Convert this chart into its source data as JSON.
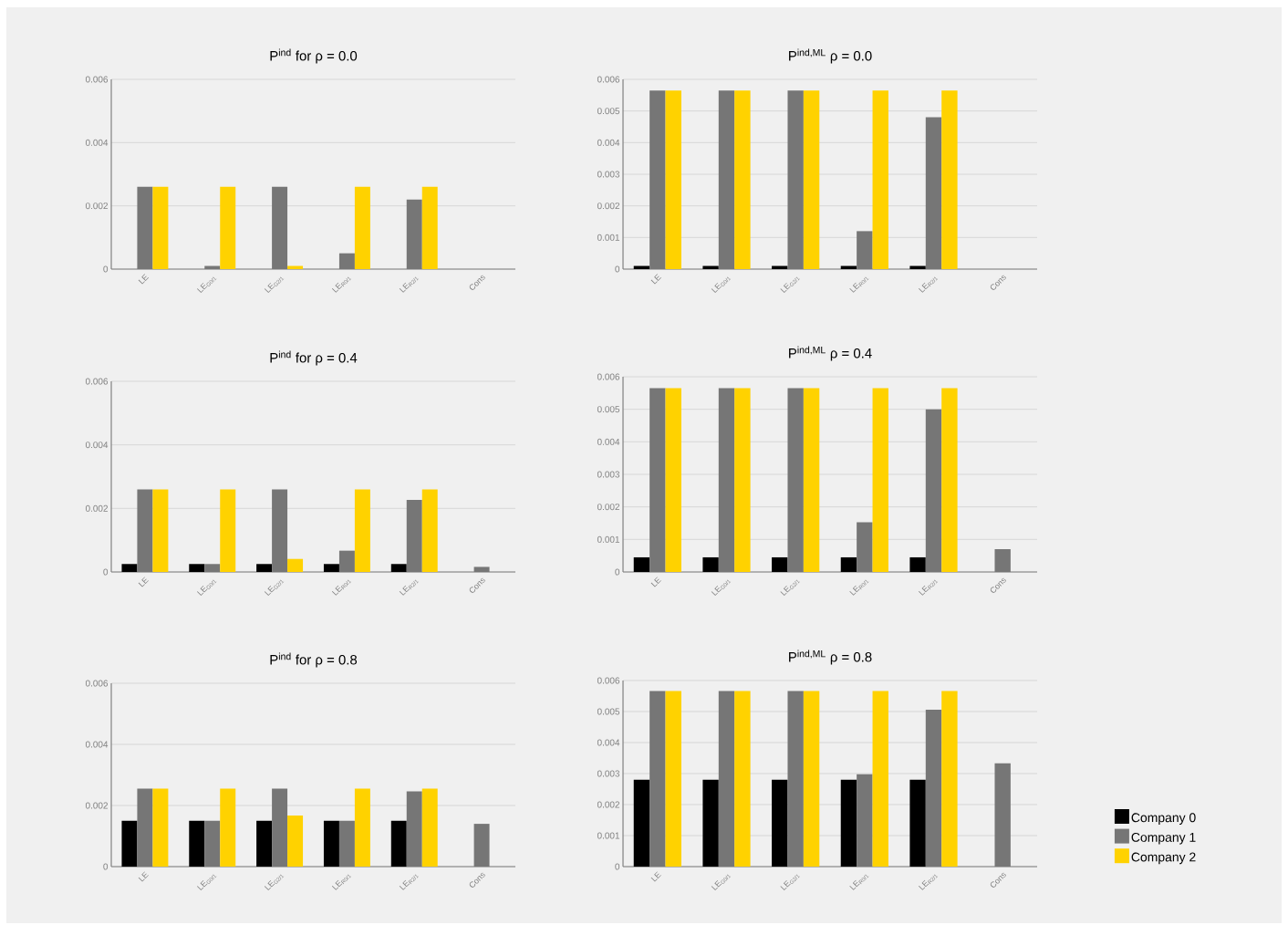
{
  "chart_data": [
    {
      "type": "bar",
      "title": "P$^{ind}$ for ρ = 0.0",
      "categories": [
        "LE",
        "LE$_{G0/1}$",
        "LE$_{G2/1}$",
        "LE$_{R0/1}$",
        "LE$_{R2/1}$",
        "Cons"
      ],
      "ylim": [
        0,
        0.006
      ],
      "yticks": [
        0,
        0.002,
        0.004,
        0.006
      ],
      "grid": "y",
      "series": [
        {
          "color": "#000000",
          "values": [
            0,
            0,
            0,
            0,
            0,
            0
          ]
        },
        {
          "color": "#767676",
          "values": [
            0.0026,
            0.0001,
            0.0026,
            0.0005,
            0.0022,
            0
          ]
        },
        {
          "color": "#ffd200",
          "values": [
            0.0026,
            0.0026,
            0.0001,
            0.0026,
            0.0026,
            0
          ]
        }
      ]
    },
    {
      "type": "bar",
      "title": "P$^{ind,ML}$ ρ = 0.0",
      "categories": [
        "LE",
        "LE$_{G0/1}$",
        "LE$_{G2/1}$",
        "LE$_{R0/1}$",
        "LE$_{R2/1}$",
        "Cons"
      ],
      "ylim": [
        0,
        0.006
      ],
      "yticks": [
        0,
        0.001,
        0.002,
        0.003,
        0.004,
        0.005,
        0.006
      ],
      "grid": "y",
      "series": [
        {
          "color": "#000000",
          "values": [
            0.0001,
            0.0001,
            0.0001,
            0.0001,
            0.0001,
            0
          ]
        },
        {
          "color": "#767676",
          "values": [
            0.00565,
            0.00565,
            0.00565,
            0.0012,
            0.0048,
            0
          ]
        },
        {
          "color": "#ffd200",
          "values": [
            0.00565,
            0.00565,
            0.00565,
            0.00565,
            0.00565,
            0
          ]
        }
      ]
    },
    {
      "type": "bar",
      "title": "P$^{ind}$ for ρ = 0.4",
      "categories": [
        "LE",
        "LE$_{G0/1}$",
        "LE$_{G2/1}$",
        "LE$_{R0/1}$",
        "LE$_{R2/1}$",
        "Cons"
      ],
      "ylim": [
        0,
        0.006
      ],
      "yticks": [
        0,
        0.002,
        0.004,
        0.006
      ],
      "grid": "y",
      "series": [
        {
          "color": "#000000",
          "values": [
            0.00025,
            0.00025,
            0.00025,
            0.00025,
            0.00025,
            0
          ]
        },
        {
          "color": "#767676",
          "values": [
            0.0026,
            0.00025,
            0.0026,
            0.00067,
            0.00227,
            0.00016
          ]
        },
        {
          "color": "#ffd200",
          "values": [
            0.0026,
            0.0026,
            0.00041,
            0.0026,
            0.0026,
            0
          ]
        }
      ]
    },
    {
      "type": "bar",
      "title": "P$^{ind,ML}$ ρ = 0.4",
      "categories": [
        "LE",
        "LE$_{G0/1}$",
        "LE$_{G2/1}$",
        "LE$_{R0/1}$",
        "LE$_{R2/1}$",
        "Cons"
      ],
      "ylim": [
        0,
        0.006
      ],
      "yticks": [
        0,
        0.001,
        0.002,
        0.003,
        0.004,
        0.005,
        0.006
      ],
      "grid": "y",
      "series": [
        {
          "color": "#000000",
          "values": [
            0.00045,
            0.00045,
            0.00045,
            0.00045,
            0.00045,
            0
          ]
        },
        {
          "color": "#767676",
          "values": [
            0.00565,
            0.00565,
            0.00565,
            0.00153,
            0.005,
            0.0007
          ]
        },
        {
          "color": "#ffd200",
          "values": [
            0.00565,
            0.00565,
            0.00565,
            0.00565,
            0.00565,
            0
          ]
        }
      ]
    },
    {
      "type": "bar",
      "title": "P$^{ind}$ for ρ = 0.8",
      "categories": [
        "LE",
        "LE$_{G0/1}$",
        "LE$_{G2/1}$",
        "LE$_{R0/1}$",
        "LE$_{R2/1}$",
        "Cons"
      ],
      "ylim": [
        0,
        0.006
      ],
      "yticks": [
        0,
        0.002,
        0.004,
        0.006
      ],
      "grid": "y",
      "series": [
        {
          "color": "#000000",
          "values": [
            0.0015,
            0.0015,
            0.0015,
            0.0015,
            0.0015,
            0
          ]
        },
        {
          "color": "#767676",
          "values": [
            0.00255,
            0.0015,
            0.00255,
            0.0015,
            0.00246,
            0.0014
          ]
        },
        {
          "color": "#ffd200",
          "values": [
            0.00255,
            0.00255,
            0.00167,
            0.00255,
            0.00255,
            0
          ]
        }
      ]
    },
    {
      "type": "bar",
      "title": "P$^{ind,ML}$ ρ = 0.8",
      "categories": [
        "LE",
        "LE$_{G0/1}$",
        "LE$_{G2/1}$",
        "LE$_{R0/1}$",
        "LE$_{R2/1}$",
        "Cons"
      ],
      "ylim": [
        0,
        0.006
      ],
      "yticks": [
        0,
        0.001,
        0.002,
        0.003,
        0.004,
        0.005,
        0.006
      ],
      "grid": "y",
      "legend": "right",
      "series": [
        {
          "name": "Company 0",
          "color": "#000000",
          "values": [
            0.0028,
            0.0028,
            0.0028,
            0.0028,
            0.0028,
            0
          ]
        },
        {
          "name": "Company 1",
          "color": "#767676",
          "values": [
            0.00566,
            0.00566,
            0.00566,
            0.00298,
            0.00506,
            0.00333
          ]
        },
        {
          "name": "Company 2",
          "color": "#ffd200",
          "values": [
            0.00566,
            0.00566,
            0.00566,
            0.00566,
            0.00566,
            0
          ]
        }
      ]
    }
  ]
}
